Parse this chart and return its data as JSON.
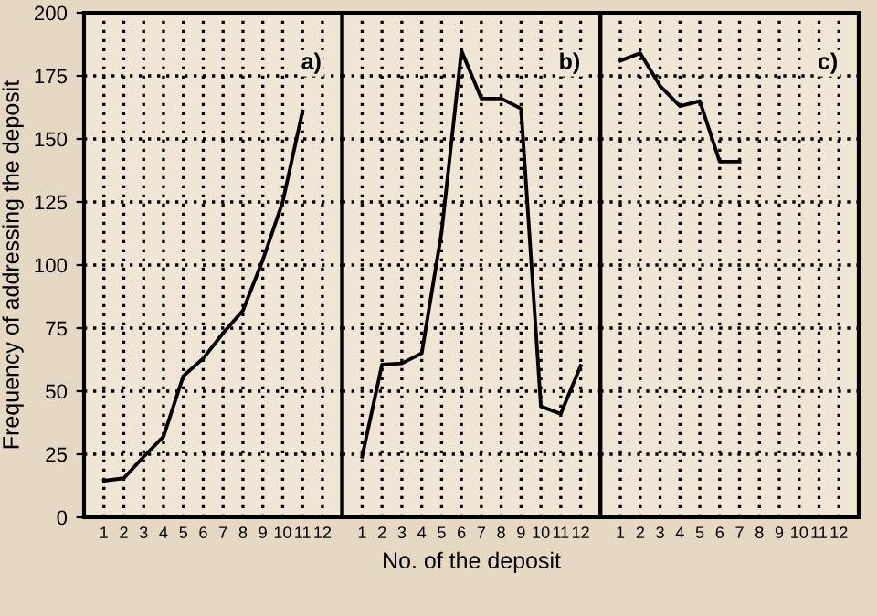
{
  "chart_data": [
    {
      "type": "line",
      "ylabel": "Frequency of addressing the deposit",
      "annotations": [
        "a)"
      ],
      "x": [
        1,
        2,
        3,
        4,
        5,
        6,
        7,
        8,
        9,
        10,
        11
      ],
      "series": [
        {
          "color": "#000000",
          "values": [
            14.5,
            15.5,
            24,
            32,
            56,
            63,
            73,
            82,
            102,
            125,
            161
          ]
        }
      ],
      "xlim": [
        0,
        13
      ],
      "xticks": [
        1,
        2,
        3,
        4,
        5,
        6,
        7,
        8,
        9,
        10,
        11,
        12
      ],
      "ylim": [
        0,
        200
      ],
      "yticks": [
        0,
        25,
        50,
        75,
        100,
        125,
        150,
        175,
        200
      ],
      "grid": true,
      "line_style": "solid"
    },
    {
      "type": "line",
      "xlabel": "No. of the deposit",
      "annotations": [
        "b)"
      ],
      "x": [
        1,
        2,
        3,
        4,
        5,
        6,
        7,
        8,
        9,
        10,
        11,
        12
      ],
      "series": [
        {
          "color": "#000000",
          "values": [
            24,
            60.5,
            61,
            65,
            113,
            185,
            166,
            166,
            162,
            44,
            41,
            60
          ]
        }
      ],
      "xlim": [
        0,
        13
      ],
      "xticks": [
        1,
        2,
        3,
        4,
        5,
        6,
        7,
        8,
        9,
        10,
        11,
        12
      ],
      "ylim": [
        0,
        200
      ],
      "tick_labels": "x",
      "grid": true,
      "line_style": "solid"
    },
    {
      "type": "line",
      "annotations": [
        "c)"
      ],
      "x": [
        1,
        2,
        3,
        4,
        5,
        6,
        7
      ],
      "series": [
        {
          "color": "#000000",
          "values": [
            181,
            184,
            171,
            163,
            165,
            141,
            141
          ]
        }
      ],
      "xlim": [
        0,
        13
      ],
      "xticks": [
        1,
        2,
        3,
        4,
        5,
        6,
        7,
        8,
        9,
        10,
        11,
        12
      ],
      "ylim": [
        0,
        200
      ],
      "tick_labels": "x",
      "grid": true,
      "line_style": "solid"
    }
  ]
}
